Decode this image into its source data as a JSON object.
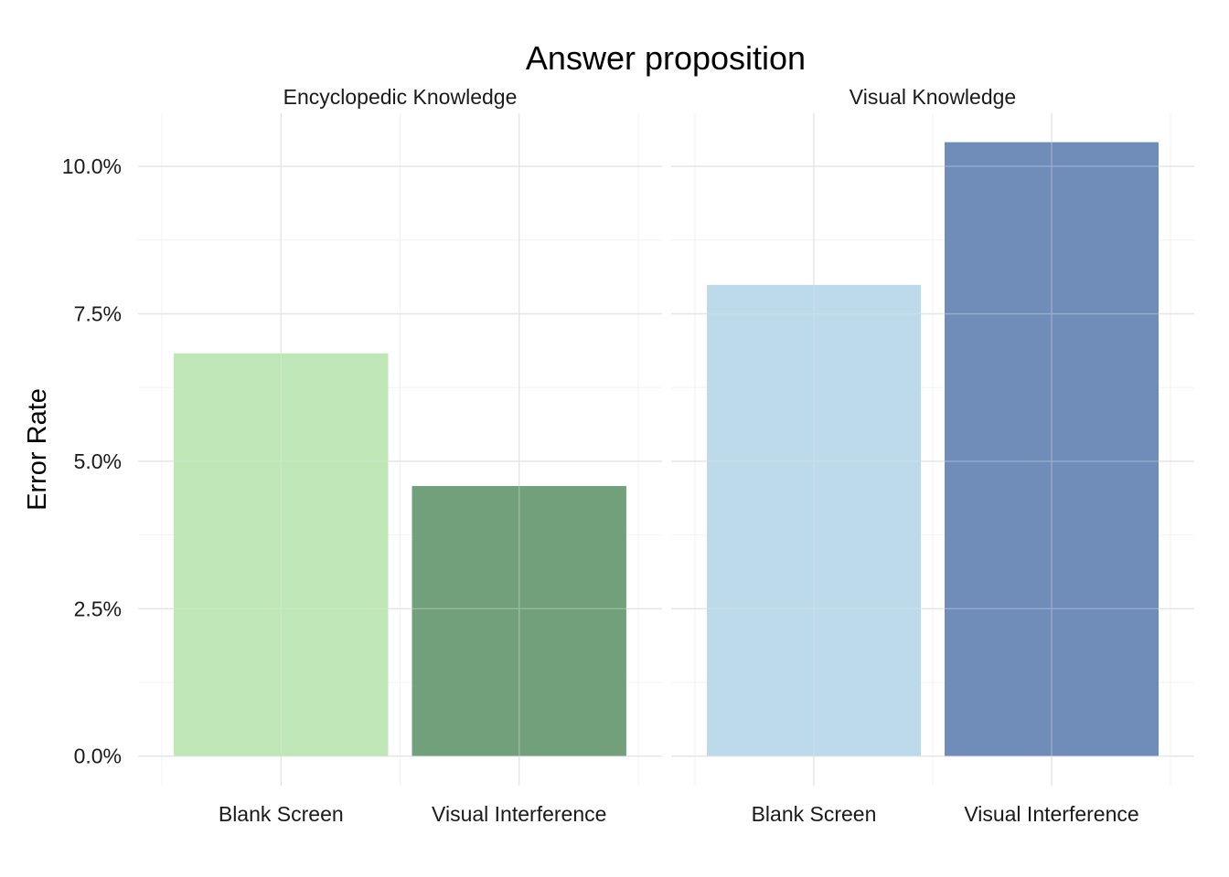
{
  "chart_data": {
    "type": "bar",
    "title": "Answer proposition",
    "ylabel": "Error Rate",
    "xlabel": "",
    "ylim": [
      -0.5,
      10.9
    ],
    "y_ticks": [
      0.0,
      2.5,
      5.0,
      7.5,
      10.0
    ],
    "y_tick_labels": [
      "0.0%",
      "2.5%",
      "5.0%",
      "7.5%",
      "10.0%"
    ],
    "grid": true,
    "legend": "none",
    "categories": [
      "Blank Screen",
      "Visual Interference"
    ],
    "panels": [
      {
        "name": "Encyclopedic Knowledge",
        "values": [
          6.83,
          4.58
        ],
        "colors": [
          "#bee5b5",
          "#6f9e78"
        ]
      },
      {
        "name": "Visual Knowledge",
        "values": [
          7.99,
          10.41
        ],
        "colors": [
          "#bcd9ea",
          "#6d8ab8"
        ]
      }
    ]
  }
}
